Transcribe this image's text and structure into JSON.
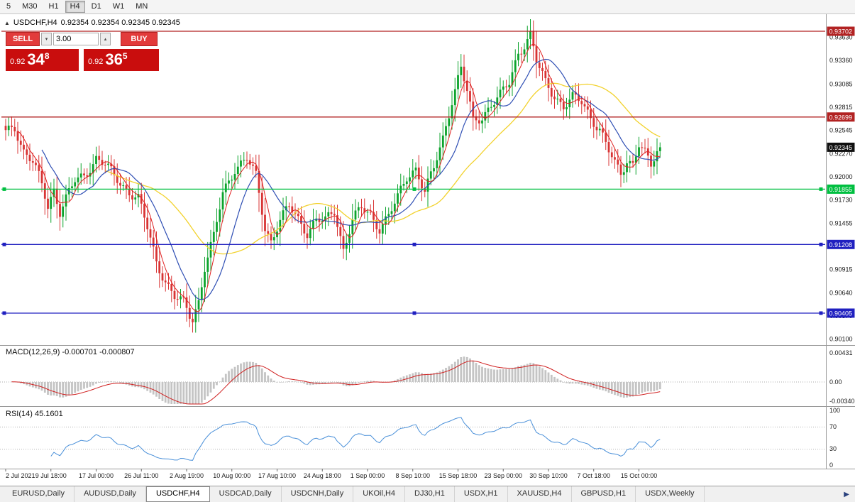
{
  "toolbar": {
    "timeframes": [
      "5",
      "M30",
      "H1",
      "H4",
      "D1",
      "W1",
      "MN"
    ],
    "active": "H4"
  },
  "quote_header": {
    "symbol": "USDCHF,H4",
    "values": "0.92354 0.92354 0.92345 0.92345"
  },
  "trade_panel": {
    "sell_label": "SELL",
    "buy_label": "BUY",
    "lot": "3.00",
    "sell_price": {
      "prefix": "0.92",
      "big": "34",
      "sup": "8"
    },
    "buy_price": {
      "prefix": "0.92",
      "big": "36",
      "sup": "5"
    }
  },
  "price_axis": {
    "labels": [
      {
        "text": "0.93630",
        "price": 0.9363
      },
      {
        "text": "0.93360",
        "price": 0.9336
      },
      {
        "text": "0.93085",
        "price": 0.93085
      },
      {
        "text": "0.92815",
        "price": 0.92815
      },
      {
        "text": "0.92545",
        "price": 0.92545
      },
      {
        "text": "0.92270",
        "price": 0.9227
      },
      {
        "text": "0.92000",
        "price": 0.92
      },
      {
        "text": "0.91730",
        "price": 0.9173
      },
      {
        "text": "0.91455",
        "price": 0.91455
      },
      {
        "text": "0.91185",
        "price": 0.91185
      },
      {
        "text": "0.90915",
        "price": 0.90915
      },
      {
        "text": "0.90640",
        "price": 0.9064
      },
      {
        "text": "0.90370",
        "price": 0.9037
      },
      {
        "text": "0.90100",
        "price": 0.901
      }
    ],
    "current_tag": {
      "text": "0.92345",
      "price": 0.92345,
      "bg": "#101010"
    }
  },
  "hlines": [
    {
      "tag": "0.93702",
      "price": 0.93702,
      "color": "#b22222",
      "handles": false
    },
    {
      "tag": "0.92699",
      "price": 0.92699,
      "color": "#b22222",
      "handles": false
    },
    {
      "tag": "0.91855",
      "price": 0.91855,
      "color": "#00bf40",
      "handles": true
    },
    {
      "tag": "0.91208",
      "price": 0.91208,
      "color": "#2020c0",
      "handles": true
    },
    {
      "tag": "0.90405",
      "price": 0.90405,
      "color": "#2020c0",
      "handles": true
    }
  ],
  "chart_data": {
    "type": "candlestick",
    "symbol": "USDCHF",
    "timeframe": "H4",
    "count": 218,
    "last_close": 0.92345,
    "close_anchors": [
      [
        0,
        0.9252
      ],
      [
        3,
        0.9258
      ],
      [
        6,
        0.923
      ],
      [
        9,
        0.9218
      ],
      [
        12,
        0.919
      ],
      [
        14,
        0.9165
      ],
      [
        16,
        0.9185
      ],
      [
        18,
        0.916
      ],
      [
        20,
        0.9175
      ],
      [
        23,
        0.9195
      ],
      [
        26,
        0.92
      ],
      [
        30,
        0.9222
      ],
      [
        33,
        0.9215
      ],
      [
        36,
        0.92
      ],
      [
        40,
        0.9185
      ],
      [
        44,
        0.9175
      ],
      [
        47,
        0.914
      ],
      [
        50,
        0.91
      ],
      [
        53,
        0.9078
      ],
      [
        56,
        0.906
      ],
      [
        59,
        0.9052
      ],
      [
        61,
        0.9038
      ],
      [
        62,
        0.9033
      ],
      [
        64,
        0.9055
      ],
      [
        66,
        0.9095
      ],
      [
        69,
        0.913
      ],
      [
        72,
        0.918
      ],
      [
        76,
        0.921
      ],
      [
        80,
        0.9222
      ],
      [
        83,
        0.92
      ],
      [
        86,
        0.914
      ],
      [
        88,
        0.9125
      ],
      [
        91,
        0.915
      ],
      [
        94,
        0.9165
      ],
      [
        97,
        0.915
      ],
      [
        100,
        0.9135
      ],
      [
        103,
        0.915
      ],
      [
        106,
        0.9148
      ],
      [
        109,
        0.916
      ],
      [
        112,
        0.9115
      ],
      [
        115,
        0.915
      ],
      [
        118,
        0.9163
      ],
      [
        121,
        0.9155
      ],
      [
        124,
        0.914
      ],
      [
        127,
        0.9155
      ],
      [
        130,
        0.9175
      ],
      [
        133,
        0.92
      ],
      [
        136,
        0.921
      ],
      [
        139,
        0.9182
      ],
      [
        142,
        0.921
      ],
      [
        145,
        0.9245
      ],
      [
        148,
        0.929
      ],
      [
        151,
        0.9327
      ],
      [
        153,
        0.93
      ],
      [
        155,
        0.9265
      ],
      [
        158,
        0.927
      ],
      [
        161,
        0.9285
      ],
      [
        164,
        0.9295
      ],
      [
        167,
        0.931
      ],
      [
        170,
        0.9345
      ],
      [
        172,
        0.9355
      ],
      [
        174,
        0.9366
      ],
      [
        176,
        0.9335
      ],
      [
        179,
        0.931
      ],
      [
        182,
        0.9295
      ],
      [
        185,
        0.9282
      ],
      [
        188,
        0.9292
      ],
      [
        191,
        0.9288
      ],
      [
        194,
        0.927
      ],
      [
        197,
        0.9255
      ],
      [
        200,
        0.923
      ],
      [
        202,
        0.9215
      ],
      [
        204,
        0.9204
      ],
      [
        206,
        0.922
      ],
      [
        208,
        0.9215
      ],
      [
        210,
        0.9238
      ],
      [
        212,
        0.9226
      ],
      [
        214,
        0.9213
      ],
      [
        216,
        0.923
      ],
      [
        217,
        0.92345
      ]
    ],
    "ma_periods": {
      "fast_red": 5,
      "mid_blue": 13,
      "slow_yellow": 34
    },
    "colors": {
      "up": "#0ca32c",
      "down": "#d83434",
      "ma_red": "#e02020",
      "ma_blue": "#2f4fb4",
      "ma_yellow": "#f2d22e",
      "macd_hist": "#c4c4c4",
      "macd_signal": "#d02020",
      "rsi": "#4a90d9"
    }
  },
  "macd_panel": {
    "label": "MACD(12,26,9)",
    "values": "-0.000701 -0.000807",
    "axis": [
      "0.00431",
      "0.00",
      "-0.00340"
    ]
  },
  "rsi_panel": {
    "label": "RSI(14)",
    "value": "45.1601",
    "axis": [
      "100",
      "70",
      "30",
      "0"
    ],
    "levels": [
      70,
      30
    ]
  },
  "time_axis": {
    "labels": [
      {
        "text": "2 Jul 2021",
        "i": 0
      },
      {
        "text": "9 Jul 18:00",
        "i": 15
      },
      {
        "text": "17 Jul 00:00",
        "i": 30
      },
      {
        "text": "26 Jul 11:00",
        "i": 45
      },
      {
        "text": "2 Aug 19:00",
        "i": 60
      },
      {
        "text": "10 Aug 00:00",
        "i": 75
      },
      {
        "text": "17 Aug 10:00",
        "i": 90
      },
      {
        "text": "24 Aug 18:00",
        "i": 105
      },
      {
        "text": "1 Sep 00:00",
        "i": 120
      },
      {
        "text": "8 Sep 10:00",
        "i": 135
      },
      {
        "text": "15 Sep 18:00",
        "i": 150
      },
      {
        "text": "23 Sep 00:00",
        "i": 165
      },
      {
        "text": "30 Sep 10:00",
        "i": 180
      },
      {
        "text": "7 Oct 18:00",
        "i": 195
      },
      {
        "text": "15 Oct 00:00",
        "i": 210
      }
    ]
  },
  "tabs": {
    "items": [
      "EURUSD,Daily",
      "AUDUSD,Daily",
      "USDCHF,H4",
      "USDCAD,Daily",
      "USDCNH,Daily",
      "UKOil,H4",
      "DJ30,H1",
      "USDX,H1",
      "XAUUSD,H4",
      "GBPUSD,H1",
      "USDX,Weekly"
    ],
    "active": "USDCHF,H4"
  }
}
